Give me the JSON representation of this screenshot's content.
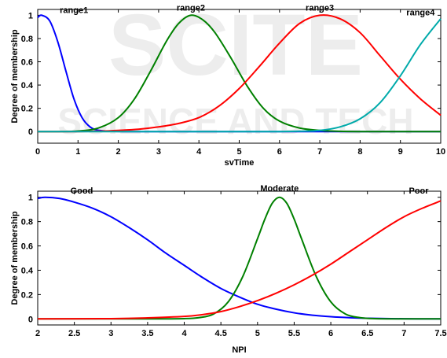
{
  "watermark": {
    "line1": "SCITE",
    "line2": "SCIENCE AND TECH"
  },
  "chart_data": [
    {
      "type": "line",
      "xlabel": "svTime",
      "ylabel": "Degree of membership",
      "xlim": [
        0,
        10
      ],
      "ylim": [
        -0.1,
        1.05
      ],
      "xticks": [
        "0",
        "1",
        "2",
        "3",
        "4",
        "5",
        "6",
        "7",
        "8",
        "9",
        "10"
      ],
      "yticks": [
        "0",
        "0.2",
        "0.4",
        "0.6",
        "0.8",
        "1"
      ],
      "grid": false,
      "series": [
        {
          "name": "range1",
          "color": "#0000ff",
          "x": [
            0,
            0.1,
            0.3,
            0.5,
            0.7,
            0.9,
            1.1,
            1.3,
            1.5,
            1.8,
            2.2,
            2.6,
            3,
            4,
            5,
            6,
            7,
            8,
            9,
            10
          ],
          "y": [
            0.98,
            1.0,
            0.95,
            0.77,
            0.52,
            0.28,
            0.12,
            0.04,
            0.012,
            0.002,
            0,
            0,
            0,
            0,
            0,
            0,
            0,
            0,
            0,
            0
          ]
        },
        {
          "name": "range2",
          "color": "#008000",
          "x": [
            0,
            0.5,
            1,
            1.5,
            2,
            2.4,
            2.8,
            3.2,
            3.5,
            3.8,
            4.1,
            4.4,
            4.8,
            5.2,
            5.6,
            6,
            6.5,
            7,
            7.5,
            8,
            9,
            10
          ],
          "y": [
            0,
            0,
            0.005,
            0.03,
            0.12,
            0.28,
            0.52,
            0.78,
            0.93,
            1.0,
            0.96,
            0.85,
            0.63,
            0.39,
            0.2,
            0.09,
            0.03,
            0.01,
            0.002,
            0,
            0,
            0
          ]
        },
        {
          "name": "range3",
          "color": "#ff0000",
          "x": [
            0,
            1,
            1.5,
            2,
            2.5,
            3,
            3.5,
            4,
            4.5,
            5,
            5.5,
            6,
            6.5,
            7,
            7.5,
            8,
            8.5,
            9,
            9.5,
            10
          ],
          "y": [
            0,
            0,
            0.003,
            0.01,
            0.02,
            0.04,
            0.07,
            0.12,
            0.22,
            0.37,
            0.56,
            0.76,
            0.93,
            1.0,
            0.97,
            0.85,
            0.65,
            0.45,
            0.28,
            0.14
          ]
        },
        {
          "name": "range4",
          "color": "#00aaaa",
          "x": [
            0,
            5,
            6,
            6.5,
            7,
            7.5,
            8,
            8.5,
            9,
            9.5,
            10
          ],
          "y": [
            0,
            0,
            0,
            0.003,
            0.01,
            0.04,
            0.11,
            0.25,
            0.48,
            0.75,
            0.97
          ]
        }
      ],
      "labels": [
        {
          "text": "range1",
          "x": 0.9,
          "y": 1.02
        },
        {
          "text": "range2",
          "x": 3.8,
          "y": 1.04
        },
        {
          "text": "range3",
          "x": 7.0,
          "y": 1.04
        },
        {
          "text": "range4",
          "x": 9.5,
          "y": 1.0
        }
      ]
    },
    {
      "type": "line",
      "xlabel": "NPI",
      "ylabel": "Degree of membership",
      "xlim": [
        2,
        7.5
      ],
      "ylim": [
        -0.05,
        1.05
      ],
      "xticks": [
        "2",
        "2.5",
        "3",
        "3.5",
        "4",
        "4.5",
        "5",
        "5.5",
        "6",
        "6.5",
        "7",
        "7.5"
      ],
      "yticks": [
        "0",
        "0.2",
        "0.4",
        "0.6",
        "0.8",
        "1"
      ],
      "grid": false,
      "series": [
        {
          "name": "Good",
          "color": "#0000ff",
          "x": [
            2,
            2.1,
            2.3,
            2.5,
            2.75,
            3,
            3.25,
            3.5,
            3.75,
            4,
            4.25,
            4.5,
            4.75,
            5,
            5.25,
            5.5,
            5.75,
            6,
            6.25,
            6.5,
            7,
            7.5
          ],
          "y": [
            0.99,
            1.0,
            0.99,
            0.96,
            0.91,
            0.84,
            0.75,
            0.65,
            0.54,
            0.44,
            0.34,
            0.25,
            0.18,
            0.12,
            0.08,
            0.05,
            0.03,
            0.018,
            0.01,
            0.005,
            0.001,
            0
          ]
        },
        {
          "name": "Moderate",
          "color": "#008000",
          "x": [
            2,
            3.5,
            4,
            4.2,
            4.4,
            4.6,
            4.8,
            5.0,
            5.1,
            5.2,
            5.3,
            5.4,
            5.5,
            5.6,
            5.8,
            6.0,
            6.2,
            6.4,
            6.6,
            7,
            7.5
          ],
          "y": [
            0,
            0,
            0.002,
            0.01,
            0.04,
            0.14,
            0.35,
            0.66,
            0.82,
            0.95,
            1.0,
            0.95,
            0.82,
            0.66,
            0.35,
            0.14,
            0.04,
            0.01,
            0.002,
            0,
            0
          ]
        },
        {
          "name": "Poor",
          "color": "#ff0000",
          "x": [
            2,
            3,
            3.5,
            4,
            4.25,
            4.5,
            4.75,
            5,
            5.25,
            5.5,
            5.75,
            6,
            6.25,
            6.5,
            6.75,
            7,
            7.25,
            7.5
          ],
          "y": [
            0,
            0.002,
            0.008,
            0.02,
            0.035,
            0.06,
            0.1,
            0.15,
            0.21,
            0.28,
            0.36,
            0.45,
            0.55,
            0.65,
            0.75,
            0.84,
            0.91,
            0.97
          ]
        }
      ],
      "labels": [
        {
          "text": "Good",
          "x": 2.6,
          "y": 1.03
        },
        {
          "text": "Moderate",
          "x": 5.3,
          "y": 1.05
        },
        {
          "text": "Poor",
          "x": 7.2,
          "y": 1.03
        }
      ]
    }
  ]
}
